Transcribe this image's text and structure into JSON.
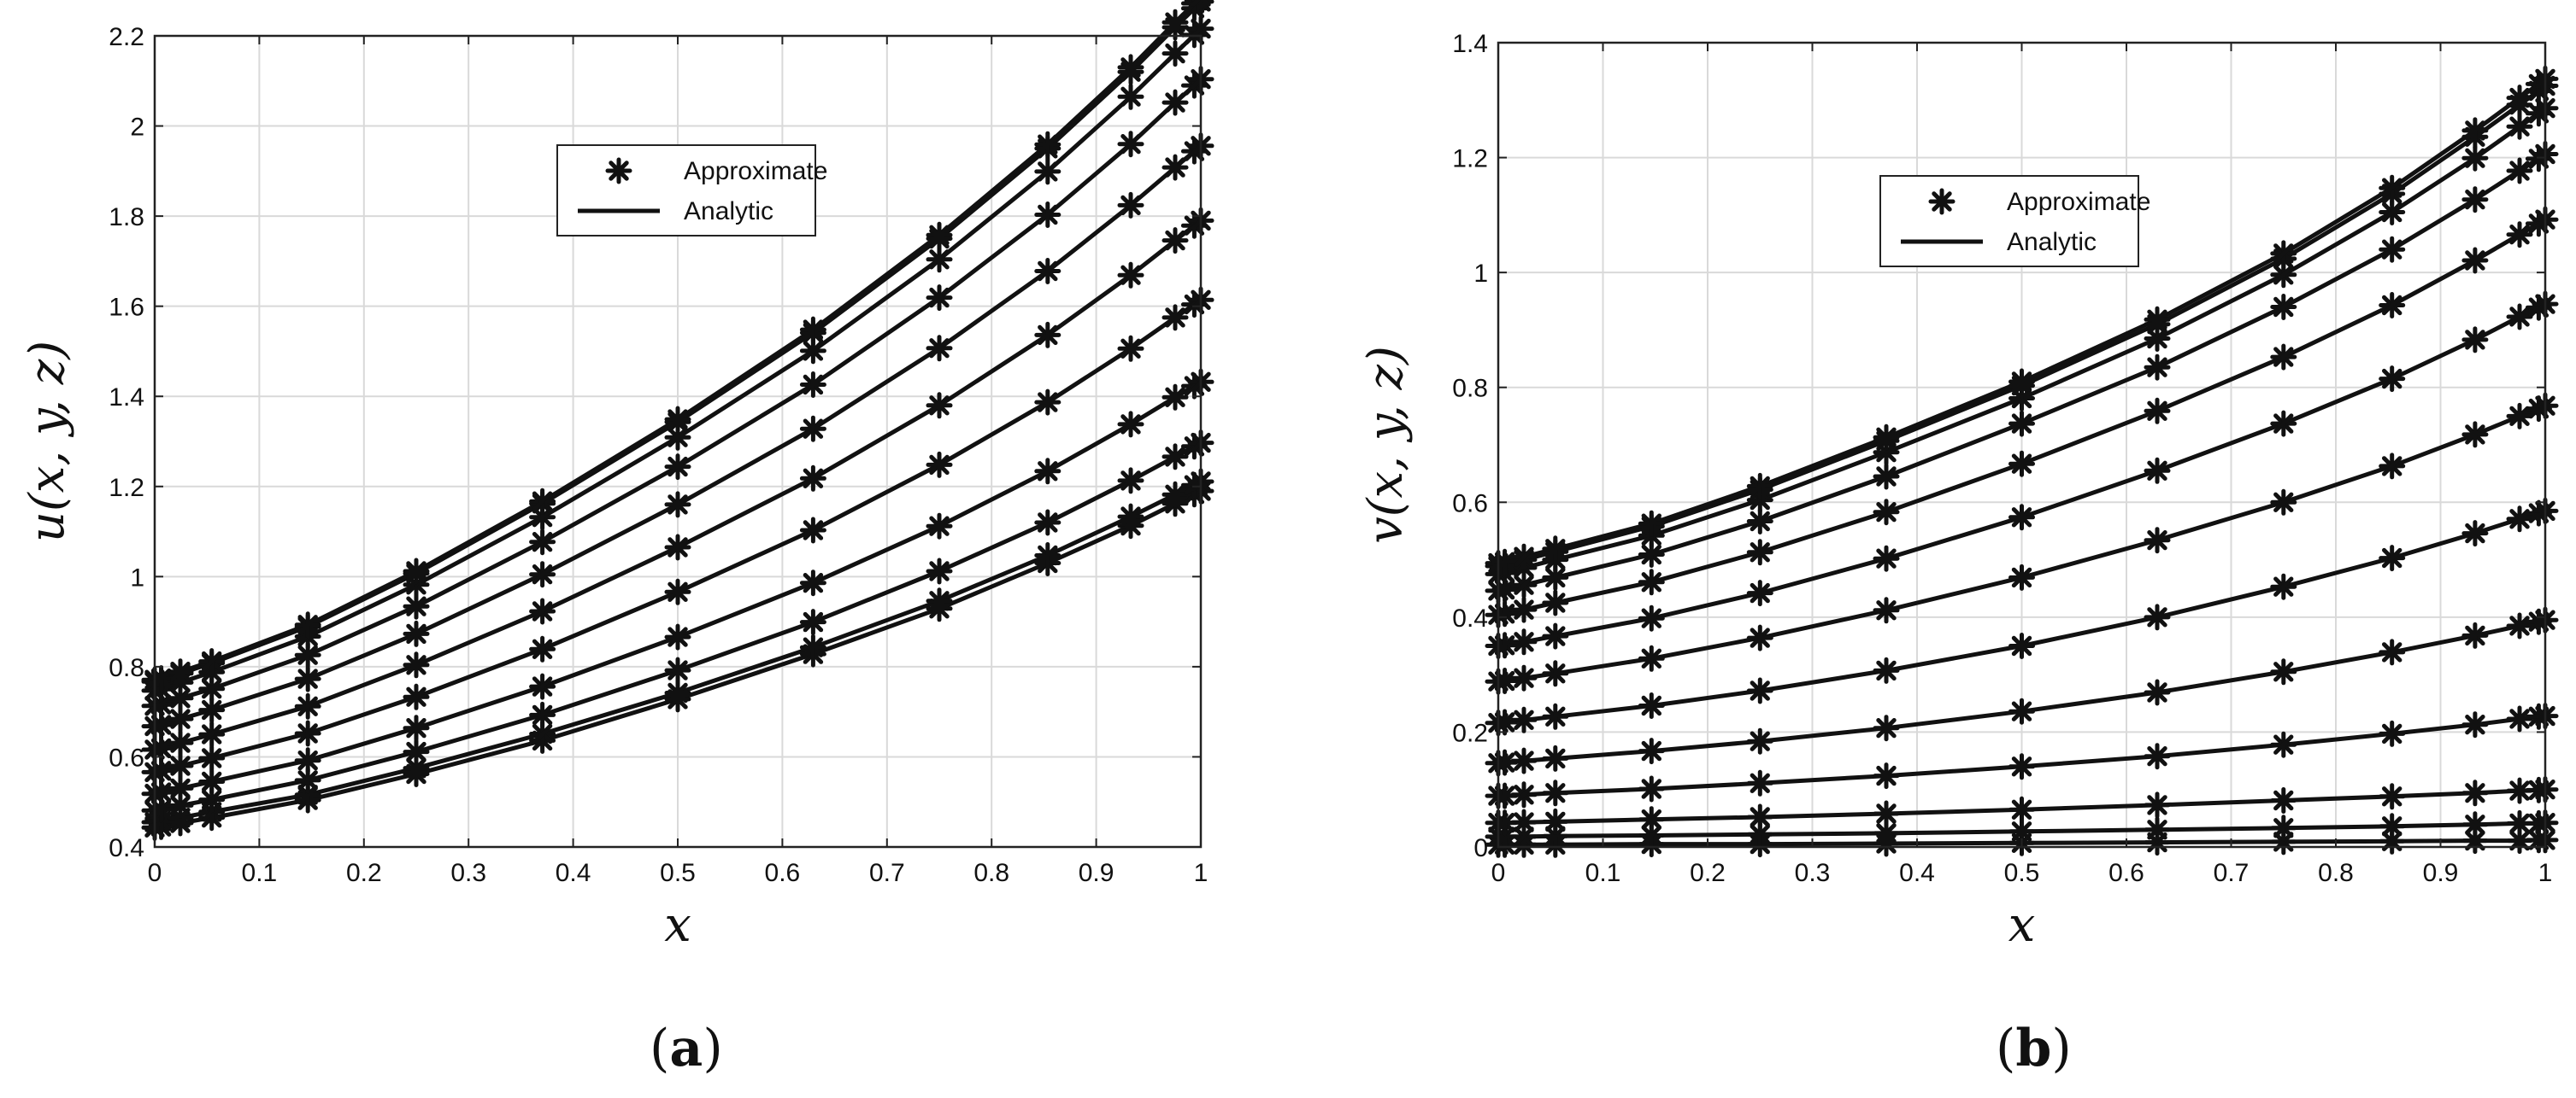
{
  "chart_data": [
    {
      "id": "a",
      "type": "line",
      "caption_open": "(",
      "caption_letter": "a",
      "caption_close": ")",
      "xlabel": "x",
      "ylabel": "u(x, y, z)",
      "xlim": [
        0,
        1
      ],
      "ylim": [
        0.4,
        2.2
      ],
      "xticks": [
        0,
        0.1,
        0.2,
        0.3,
        0.4,
        0.5,
        0.6,
        0.7,
        0.8,
        0.9,
        1
      ],
      "xtick_labels": [
        "0",
        "0.1",
        "0.2",
        "0.3",
        "0.4",
        "0.5",
        "0.6",
        "0.7",
        "0.8",
        "0.9",
        "1"
      ],
      "yticks": [
        0.4,
        0.6,
        0.8,
        1,
        1.2,
        1.4,
        1.6,
        1.8,
        2,
        2.2
      ],
      "ytick_labels": [
        "0.4",
        "0.6",
        "0.8",
        "1",
        "1.2",
        "1.4",
        "1.6",
        "1.8",
        "2",
        "2.2"
      ],
      "grid": true,
      "legend": {
        "placement": "top-center",
        "entries": [
          {
            "label": "Approximate",
            "marker": "asterisk"
          },
          {
            "label": "Analytic",
            "marker": "line"
          }
        ]
      },
      "x": [
        0,
        0.0062,
        0.0245,
        0.0545,
        0.1464,
        0.25,
        0.3706,
        0.5,
        0.6294,
        0.75,
        0.8536,
        0.933,
        0.9755,
        0.9938,
        1
      ],
      "series": [
        {
          "values": [
            0.443,
            0.445,
            0.453,
            0.465,
            0.504,
            0.562,
            0.636,
            0.728,
            0.828,
            0.929,
            1.03,
            1.113,
            1.162,
            1.183,
            1.19
          ]
        },
        {
          "values": [
            0.455,
            0.457,
            0.465,
            0.478,
            0.516,
            0.575,
            0.651,
            0.742,
            0.843,
            0.946,
            1.047,
            1.133,
            1.182,
            1.203,
            1.211
          ]
        },
        {
          "values": [
            0.481,
            0.483,
            0.492,
            0.505,
            0.548,
            0.611,
            0.693,
            0.792,
            0.899,
            1.012,
            1.12,
            1.213,
            1.266,
            1.289,
            1.297
          ]
        },
        {
          "values": [
            0.518,
            0.521,
            0.53,
            0.545,
            0.592,
            0.664,
            0.756,
            0.866,
            0.986,
            1.112,
            1.234,
            1.338,
            1.398,
            1.423,
            1.432
          ]
        },
        {
          "values": [
            0.566,
            0.569,
            0.58,
            0.597,
            0.652,
            0.733,
            0.839,
            0.966,
            1.103,
            1.248,
            1.387,
            1.506,
            1.575,
            1.604,
            1.614
          ]
        },
        {
          "values": [
            0.616,
            0.619,
            0.631,
            0.65,
            0.712,
            0.804,
            0.923,
            1.065,
            1.218,
            1.38,
            1.536,
            1.669,
            1.746,
            1.779,
            1.79
          ]
        },
        {
          "values": [
            0.668,
            0.671,
            0.684,
            0.704,
            0.773,
            0.873,
            1.005,
            1.16,
            1.328,
            1.507,
            1.678,
            1.824,
            1.908,
            1.944,
            1.956
          ]
        },
        {
          "values": [
            0.713,
            0.716,
            0.73,
            0.751,
            0.826,
            0.934,
            1.077,
            1.244,
            1.426,
            1.619,
            1.803,
            1.96,
            2.052,
            2.09,
            2.104
          ]
        },
        {
          "values": [
            0.747,
            0.75,
            0.765,
            0.788,
            0.867,
            0.982,
            1.132,
            1.309,
            1.501,
            1.704,
            1.899,
            2.065,
            2.161,
            2.202,
            2.216
          ]
        },
        {
          "values": [
            0.767,
            0.77,
            0.785,
            0.808,
            0.889,
            1.007,
            1.162,
            1.343,
            1.541,
            1.75,
            1.95,
            2.12,
            2.219,
            2.261,
            2.276
          ]
        },
        {
          "values": [
            0.771,
            0.774,
            0.789,
            0.812,
            0.893,
            1.012,
            1.167,
            1.349,
            1.548,
            1.758,
            1.959,
            2.13,
            2.23,
            2.272,
            2.287
          ]
        }
      ]
    },
    {
      "id": "b",
      "type": "line",
      "caption_open": "(",
      "caption_letter": "b",
      "caption_close": ")",
      "xlabel": "x",
      "ylabel": "v(x, y, z)",
      "xlim": [
        0,
        1
      ],
      "ylim": [
        0,
        1.4
      ],
      "xticks": [
        0,
        0.1,
        0.2,
        0.3,
        0.4,
        0.5,
        0.6,
        0.7,
        0.8,
        0.9,
        1
      ],
      "xtick_labels": [
        "0",
        "0.1",
        "0.2",
        "0.3",
        "0.4",
        "0.5",
        "0.6",
        "0.7",
        "0.8",
        "0.9",
        "1"
      ],
      "yticks": [
        0,
        0.2,
        0.4,
        0.6,
        0.8,
        1,
        1.2,
        1.4
      ],
      "ytick_labels": [
        "0",
        "0.2",
        "0.4",
        "0.6",
        "0.8",
        "1",
        "1.2",
        "1.4"
      ],
      "grid": true,
      "legend": {
        "placement": "top-center",
        "entries": [
          {
            "label": "Approximate",
            "marker": "asterisk"
          },
          {
            "label": "Analytic",
            "marker": "line"
          }
        ]
      },
      "x": [
        0,
        0.0062,
        0.0245,
        0.0545,
        0.1464,
        0.25,
        0.3706,
        0.5,
        0.6294,
        0.75,
        0.8536,
        0.933,
        0.9755,
        0.9938,
        1
      ],
      "series": [
        {
          "values": [
            0.004,
            0.004,
            0.004,
            0.004,
            0.005,
            0.005,
            0.006,
            0.007,
            0.008,
            0.009,
            0.01,
            0.011,
            0.011,
            0.012,
            0.012
          ]
        },
        {
          "values": [
            0.018,
            0.018,
            0.018,
            0.019,
            0.02,
            0.022,
            0.024,
            0.027,
            0.03,
            0.033,
            0.036,
            0.039,
            0.041,
            0.041,
            0.042
          ]
        },
        {
          "values": [
            0.042,
            0.042,
            0.043,
            0.044,
            0.048,
            0.052,
            0.058,
            0.065,
            0.073,
            0.081,
            0.088,
            0.094,
            0.098,
            0.099,
            0.1
          ]
        },
        {
          "values": [
            0.089,
            0.089,
            0.091,
            0.094,
            0.101,
            0.111,
            0.124,
            0.14,
            0.158,
            0.178,
            0.197,
            0.213,
            0.223,
            0.227,
            0.228
          ]
        },
        {
          "values": [
            0.146,
            0.147,
            0.15,
            0.154,
            0.167,
            0.184,
            0.207,
            0.236,
            0.269,
            0.305,
            0.339,
            0.368,
            0.385,
            0.392,
            0.395
          ]
        },
        {
          "values": [
            0.216,
            0.217,
            0.221,
            0.227,
            0.246,
            0.272,
            0.307,
            0.35,
            0.4,
            0.453,
            0.503,
            0.546,
            0.571,
            0.581,
            0.585
          ]
        },
        {
          "values": [
            0.288,
            0.289,
            0.294,
            0.302,
            0.328,
            0.364,
            0.412,
            0.469,
            0.534,
            0.6,
            0.663,
            0.718,
            0.75,
            0.763,
            0.768
          ]
        },
        {
          "values": [
            0.35,
            0.351,
            0.357,
            0.367,
            0.398,
            0.442,
            0.502,
            0.574,
            0.655,
            0.737,
            0.815,
            0.883,
            0.923,
            0.939,
            0.945
          ]
        },
        {
          "values": [
            0.404,
            0.406,
            0.413,
            0.425,
            0.461,
            0.513,
            0.583,
            0.667,
            0.759,
            0.853,
            0.943,
            1.021,
            1.066,
            1.085,
            1.092
          ]
        },
        {
          "values": [
            0.446,
            0.448,
            0.456,
            0.469,
            0.509,
            0.567,
            0.645,
            0.737,
            0.835,
            0.94,
            1.04,
            1.127,
            1.177,
            1.198,
            1.206
          ]
        },
        {
          "values": [
            0.475,
            0.477,
            0.486,
            0.5,
            0.542,
            0.604,
            0.687,
            0.781,
            0.885,
            0.996,
            1.105,
            1.199,
            1.254,
            1.277,
            1.286
          ]
        },
        {
          "values": [
            0.489,
            0.491,
            0.5,
            0.514,
            0.558,
            0.622,
            0.707,
            0.803,
            0.91,
            1.024,
            1.137,
            1.236,
            1.292,
            1.316,
            1.325
          ]
        },
        {
          "values": [
            0.494,
            0.496,
            0.505,
            0.519,
            0.563,
            0.628,
            0.713,
            0.81,
            0.918,
            1.033,
            1.147,
            1.247,
            1.304,
            1.328,
            1.337
          ]
        }
      ]
    }
  ]
}
